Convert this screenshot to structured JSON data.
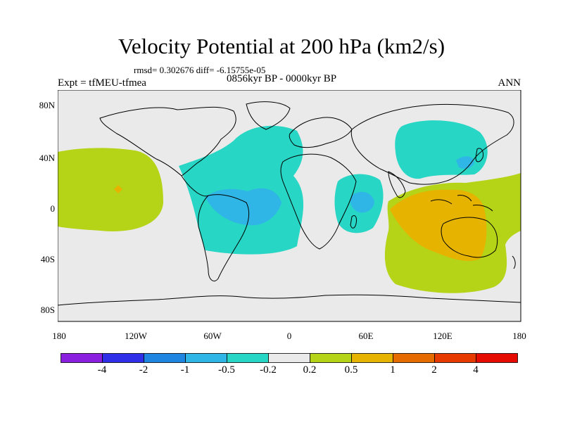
{
  "title": "Velocity Potential at 200 hPa (km2/s)",
  "stats": "rmsd= 0.302676 diff= -6.15755e-05",
  "expt": "Expt = tfMEU-tfmea",
  "period": "0856kyr BP - 0000kyr BP",
  "season": "ANN",
  "lat_labels": [
    "80N",
    "40N",
    "0",
    "40S",
    "80S"
  ],
  "lon_labels": [
    "180",
    "120W",
    "60W",
    "0",
    "60E",
    "120E",
    "180"
  ],
  "colorbar": {
    "labels": [
      "-4",
      "-2",
      "-1",
      "-0.5",
      "-0.2",
      "0.2",
      "0.5",
      "1",
      "2",
      "4"
    ],
    "colors": [
      "#8a1fe0",
      "#2f2fe8",
      "#1e86e0",
      "#2fb6e6",
      "#27d6c4",
      "#eaeaea",
      "#b5d417",
      "#e6b300",
      "#e66b00",
      "#e63a00",
      "#e60b00"
    ]
  },
  "map_colors": {
    "neg_02": "#27d6c4",
    "neg_05": "#2fb6e6",
    "pos_02": "#b5d417",
    "pos_05": "#e6b300",
    "pos_1": "#e66b00",
    "background": "#eaeaea"
  }
}
